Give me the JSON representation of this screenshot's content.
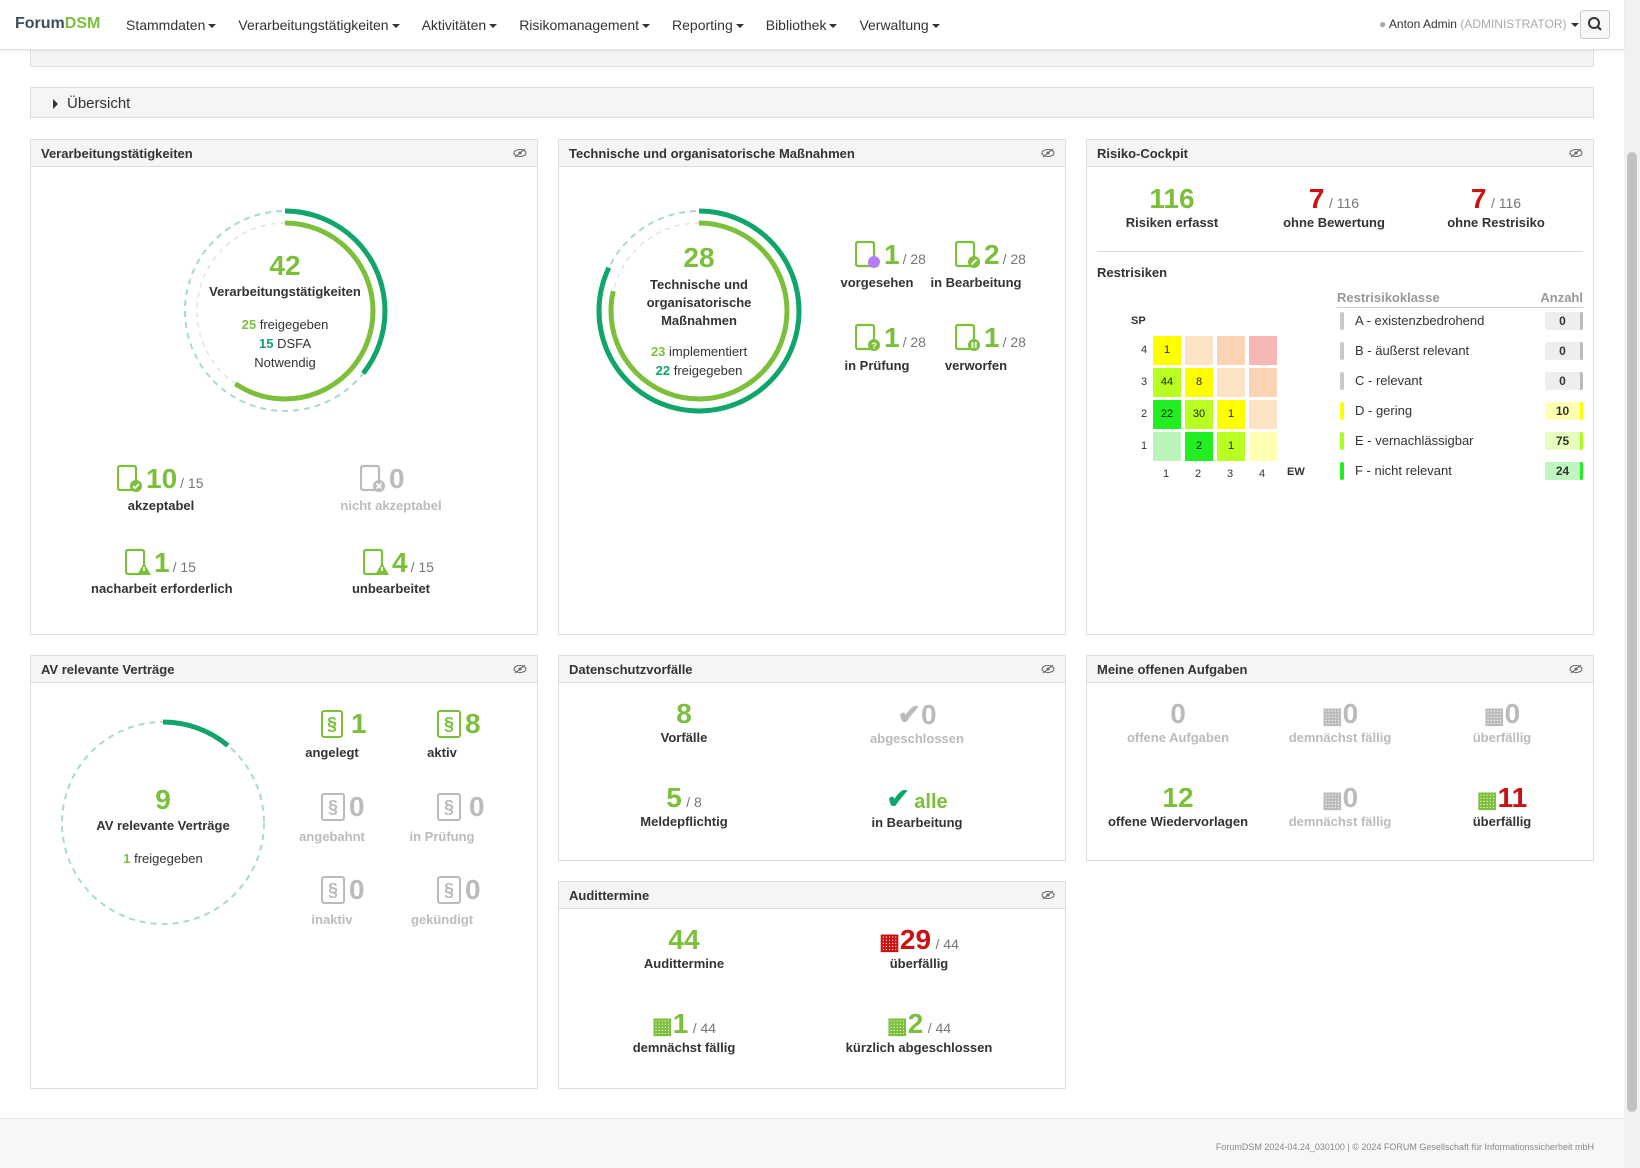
{
  "nav": {
    "brand_a": "Forum",
    "brand_b": "DSM",
    "menu": [
      "Stammdaten",
      "Verarbeitungstätigkeiten",
      "Aktivitäten",
      "Risikomanagement",
      "Reporting",
      "Bibliothek",
      "Verwaltung"
    ],
    "user": "Anton Admin",
    "role": "(ADMINISTRATOR)"
  },
  "overview": "Übersicht",
  "vt": {
    "title": "Verarbeitungstätigkeiten",
    "total": "42",
    "total_label": "Verarbeitungstätigkeiten",
    "freig_n": "25",
    "freig_l": "freigegeben",
    "dsfa_n": "15",
    "dsfa_l": "DSFA",
    "dsfa_l2": "Notwendig",
    "akz_n": "10",
    "akz_of": "/ 15",
    "akz_l": "akzeptabel",
    "nakz_n": "0",
    "nakz_l": "nicht akzeptabel",
    "nach_n": "1",
    "nach_of": "/ 15",
    "nach_l": "nacharbeit erforderlich",
    "unb_n": "4",
    "unb_of": "/ 15",
    "unb_l": "unbearbeitet"
  },
  "tom": {
    "title": "Technische und organisatorische Maßnahmen",
    "total": "28",
    "l1": "Technische und",
    "l2": "organisatorische",
    "l3": "Maßnahmen",
    "impl_n": "23",
    "impl_l": "implementiert",
    "freig_n": "22",
    "freig_l": "freigegeben",
    "items": [
      {
        "n": "1",
        "of": "/ 28",
        "l": "vorgesehen"
      },
      {
        "n": "2",
        "of": "/ 28",
        "l": "in Bearbeitung"
      },
      {
        "n": "1",
        "of": "/ 28",
        "l": "in Prüfung"
      },
      {
        "n": "1",
        "of": "/ 28",
        "l": "verworfen"
      }
    ]
  },
  "risk": {
    "title": "Risiko-Cockpit",
    "a_n": "116",
    "a_l": "Risiken erfasst",
    "b_n": "7",
    "b_of": "/ 116",
    "b_l": "ohne Bewertung",
    "c_n": "7",
    "c_of": "/ 116",
    "c_l": "ohne Restrisiko",
    "rest": "Restrisiken",
    "sp": "SP",
    "ew": "EW",
    "col_class": "Restrisikoklasse",
    "col_count": "Anzahl",
    "classes": [
      {
        "l": "A - existenzbedrohend",
        "n": "0",
        "c": "#c8c8c8",
        "bg": "#eeeeee"
      },
      {
        "l": "B - äußerst relevant",
        "n": "0",
        "c": "#c8c8c8",
        "bg": "#eeeeee"
      },
      {
        "l": "C - relevant",
        "n": "0",
        "c": "#c8c8c8",
        "bg": "#eeeeee"
      },
      {
        "l": "D - gering",
        "n": "10",
        "c": "#ffff00",
        "bg": "#ffffb3"
      },
      {
        "l": "E - vernachlässigbar",
        "n": "75",
        "c": "#aaff22",
        "bg": "#e6ffbf"
      },
      {
        "l": "F - nicht relevant",
        "n": "24",
        "c": "#22ee22",
        "bg": "#bff5bf"
      }
    ],
    "matrix": [
      [
        "1",
        "",
        "",
        ""
      ],
      [
        "44",
        "8",
        "",
        ""
      ],
      [
        "22",
        "30",
        "1",
        ""
      ],
      [
        "",
        "2",
        "1",
        ""
      ]
    ],
    "matrix_colors": [
      [
        "#ffff00",
        "#fde4c4",
        "#fcd4b3",
        "#f7b7b2"
      ],
      [
        "#b8ff22",
        "#ffff00",
        "#fde4c4",
        "#fcd4b3"
      ],
      [
        "#22ee22",
        "#b8ff22",
        "#ffff00",
        "#fde4c4"
      ],
      [
        "#b9f5b9",
        "#22ee22",
        "#b8ff22",
        "#ffffb3"
      ]
    ],
    "sp_ticks": [
      "4",
      "3",
      "2",
      "1"
    ],
    "ew_ticks": [
      "1",
      "2",
      "3",
      "4"
    ]
  },
  "av": {
    "title": "AV relevante Verträge",
    "total": "9",
    "total_l": "AV relevante Verträge",
    "freig_n": "1",
    "freig_l": "freigegeben",
    "items": [
      {
        "n": "1",
        "l": "angelegt"
      },
      {
        "n": "8",
        "l": "aktiv"
      },
      {
        "n": "0",
        "l": "angebahnt"
      },
      {
        "n": "0",
        "l": "in Prüfung"
      },
      {
        "n": "0",
        "l": "inaktiv"
      },
      {
        "n": "0",
        "l": "gekündigt"
      }
    ]
  },
  "ds": {
    "title": "Datenschutzvorfälle",
    "v_n": "8",
    "v_l": "Vorfälle",
    "a_n": "0",
    "a_l": "abgeschlossen",
    "m_n": "5",
    "m_of": "/ 8",
    "m_l": "Meldepflichtig",
    "b_n": "alle",
    "b_l": "in Bearbeitung"
  },
  "audit": {
    "title": "Audittermine",
    "a_n": "44",
    "a_l": "Audittermine",
    "u_n": "29",
    "u_of": "/ 44",
    "u_l": "überfällig",
    "d_n": "1",
    "d_of": "/ 44",
    "d_l": "demnächst fällig",
    "k_n": "2",
    "k_of": "/ 44",
    "k_l": "kürzlich abgeschlossen"
  },
  "tasks": {
    "title": "Meine offenen Aufgaben",
    "a_n": "0",
    "a_l": "offene Aufgaben",
    "b_n": "0",
    "b_l": "demnächst fällig",
    "c_n": "0",
    "c_l": "überfällig",
    "d_n": "12",
    "d_l": "offene Wiedervorlagen",
    "e_n": "0",
    "e_l": "demnächst fällig",
    "f_n": "11",
    "f_l": "überfällig"
  },
  "footer": {
    "version": "ForumDSM 2024-04.24_030100",
    "sep": "|",
    "copy": "© 2024 FORUM Gesellschaft für Informationssicherheit mbH"
  },
  "progress": {
    "vt_freig": 0.595,
    "vt_dsfa": 0.357,
    "tom_impl": 0.821,
    "tom_freig": 0.786,
    "av_freig": 0.111
  }
}
